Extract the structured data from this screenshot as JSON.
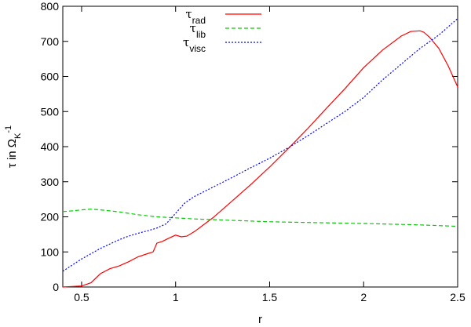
{
  "chart_data": {
    "type": "line",
    "xlabel": "r",
    "ylabel": {
      "prefix": "τ  in Ω",
      "subscript": "K",
      "superscript": "-1"
    },
    "xlim": [
      0.4,
      2.5
    ],
    "ylim": [
      0,
      800
    ],
    "xticks": [
      0.5,
      1,
      1.5,
      2,
      2.5
    ],
    "xtick_labels": [
      "0.5",
      "1",
      "1.5",
      "2",
      "2.5"
    ],
    "yticks": [
      0,
      100,
      200,
      300,
      400,
      500,
      600,
      700,
      800
    ],
    "ytick_labels": [
      "0",
      "100",
      "200",
      "300",
      "400",
      "500",
      "600",
      "700",
      "800"
    ],
    "grid": false,
    "legend_position": "top-center",
    "series": [
      {
        "name": "τrad",
        "legend": {
          "symbol": "τ",
          "subscript": "rad"
        },
        "color": "#ff0000",
        "dash": "solid",
        "x": [
          0.4,
          0.5,
          0.55,
          0.6,
          0.65,
          0.7,
          0.75,
          0.8,
          0.85,
          0.88,
          0.9,
          0.93,
          0.96,
          1.0,
          1.03,
          1.06,
          1.1,
          1.2,
          1.3,
          1.4,
          1.5,
          1.6,
          1.7,
          1.8,
          1.9,
          2.0,
          2.1,
          2.2,
          2.25,
          2.3,
          2.32,
          2.35,
          2.4,
          2.45,
          2.5
        ],
        "y": [
          0,
          3,
          12,
          38,
          52,
          60,
          72,
          86,
          95,
          100,
          125,
          130,
          138,
          148,
          143,
          145,
          158,
          198,
          245,
          292,
          342,
          395,
          450,
          508,
          565,
          625,
          675,
          715,
          728,
          730,
          726,
          712,
          680,
          630,
          570
        ]
      },
      {
        "name": "τlib",
        "legend": {
          "symbol": "τ",
          "subscript": "lib"
        },
        "color": "#00cc00",
        "dash": "dashed",
        "x": [
          0.4,
          0.45,
          0.5,
          0.55,
          0.6,
          0.7,
          0.8,
          0.9,
          1.0,
          1.1,
          1.2,
          1.3,
          1.5,
          1.7,
          2.0,
          2.3,
          2.5
        ],
        "y": [
          215,
          217,
          220,
          222,
          220,
          214,
          206,
          200,
          197,
          194,
          192,
          190,
          186,
          184,
          181,
          177,
          173
        ]
      },
      {
        "name": "τvisc",
        "legend": {
          "symbol": "τ",
          "subscript": "visc"
        },
        "color": "#0000ff",
        "dash": "dotted",
        "x": [
          0.4,
          0.5,
          0.6,
          0.7,
          0.75,
          0.8,
          0.85,
          0.9,
          0.95,
          1.0,
          1.05,
          1.1,
          1.2,
          1.3,
          1.4,
          1.5,
          1.6,
          1.7,
          1.8,
          1.9,
          2.0,
          2.1,
          2.2,
          2.3,
          2.4,
          2.5
        ],
        "y": [
          45,
          80,
          110,
          135,
          145,
          153,
          160,
          168,
          180,
          210,
          240,
          258,
          285,
          312,
          340,
          367,
          397,
          430,
          465,
          500,
          540,
          590,
          635,
          680,
          718,
          765
        ]
      }
    ]
  }
}
